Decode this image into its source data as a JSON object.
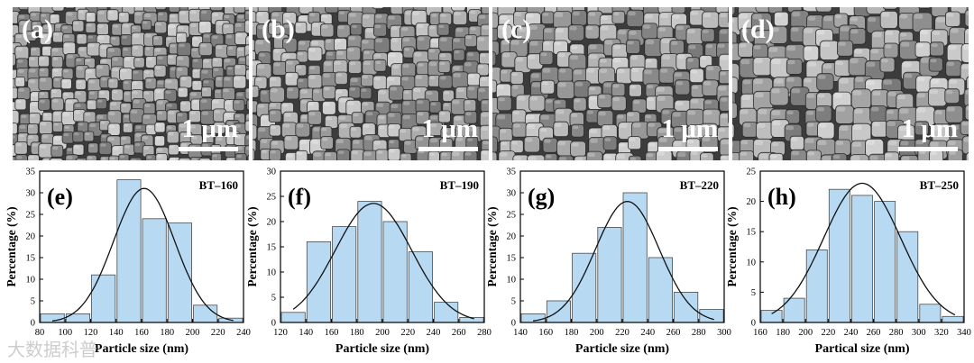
{
  "sem_panels": [
    {
      "label": "(a)",
      "scale_text": "1 μm"
    },
    {
      "label": "(b)",
      "scale_text": "1 μm"
    },
    {
      "label": "(c)",
      "scale_text": "1 μm"
    },
    {
      "label": "(d)",
      "scale_text": "1 μm"
    }
  ],
  "watermark": "大数据科普",
  "colors": {
    "bar_fill": "#b8d9f2",
    "bar_stroke": "#4b4b4b",
    "curve": "#111111",
    "axis": "#000000"
  },
  "chart_data": [
    {
      "type": "bar",
      "panel_label": "(e)",
      "sample_label": "BT–160",
      "xlabel": "Particle size (nm)",
      "ylabel": "Percentage (%)",
      "xlim": [
        80,
        240
      ],
      "ylim": [
        0,
        35
      ],
      "x_ticks": [
        80,
        100,
        120,
        140,
        160,
        180,
        200,
        220,
        240
      ],
      "y_ticks": [
        0,
        5,
        10,
        15,
        20,
        25,
        30,
        35
      ],
      "bin_edges": [
        80,
        100,
        120,
        140,
        160,
        180,
        200,
        220,
        240
      ],
      "values": [
        2,
        2,
        11,
        33,
        24,
        23,
        4,
        1
      ],
      "fit": {
        "type": "gaussian",
        "mean": 162,
        "sd": 24,
        "peak": 31
      }
    },
    {
      "type": "bar",
      "panel_label": "(f)",
      "sample_label": "BT–190",
      "xlabel": "Particle size (nm)",
      "ylabel": "Percentage (%)",
      "xlim": [
        120,
        280
      ],
      "ylim": [
        0,
        30
      ],
      "x_ticks": [
        120,
        140,
        160,
        180,
        200,
        220,
        240,
        260,
        280
      ],
      "y_ticks": [
        0,
        5,
        10,
        15,
        20,
        25,
        30
      ],
      "bin_edges": [
        120,
        140,
        160,
        180,
        200,
        220,
        240,
        260,
        280
      ],
      "values": [
        2,
        16,
        19,
        24,
        20,
        14,
        4,
        1
      ],
      "fit": {
        "type": "gaussian",
        "mean": 193,
        "sd": 30,
        "peak": 23.6
      }
    },
    {
      "type": "bar",
      "panel_label": "(g)",
      "sample_label": "BT–220",
      "xlabel": "Particle size (nm)",
      "ylabel": "Percentage (%)",
      "xlim": [
        140,
        300
      ],
      "ylim": [
        0,
        35
      ],
      "x_ticks": [
        140,
        160,
        180,
        200,
        220,
        240,
        260,
        280,
        300
      ],
      "y_ticks": [
        0,
        5,
        10,
        15,
        20,
        25,
        30,
        35
      ],
      "bin_edges": [
        140,
        160,
        180,
        200,
        220,
        240,
        260,
        280,
        300
      ],
      "values": [
        2,
        5,
        16,
        22,
        30,
        15,
        7,
        3
      ],
      "fit": {
        "type": "gaussian",
        "mean": 224,
        "sd": 25,
        "peak": 28
      }
    },
    {
      "type": "bar",
      "panel_label": "(h)",
      "sample_label": "BT–250",
      "xlabel": "Partical size (nm)",
      "ylabel": "Percentage (%)",
      "xlim": [
        160,
        340
      ],
      "ylim": [
        0,
        25
      ],
      "x_ticks": [
        160,
        180,
        200,
        220,
        240,
        260,
        280,
        300,
        320,
        340
      ],
      "y_ticks": [
        0,
        5,
        10,
        15,
        20,
        25
      ],
      "bin_edges": [
        160,
        180,
        200,
        220,
        240,
        260,
        280,
        300,
        320,
        340
      ],
      "values": [
        2,
        4,
        12,
        22,
        21,
        20,
        15,
        3,
        1
      ],
      "fit": {
        "type": "gaussian",
        "mean": 250,
        "sd": 34,
        "peak": 23
      }
    }
  ]
}
